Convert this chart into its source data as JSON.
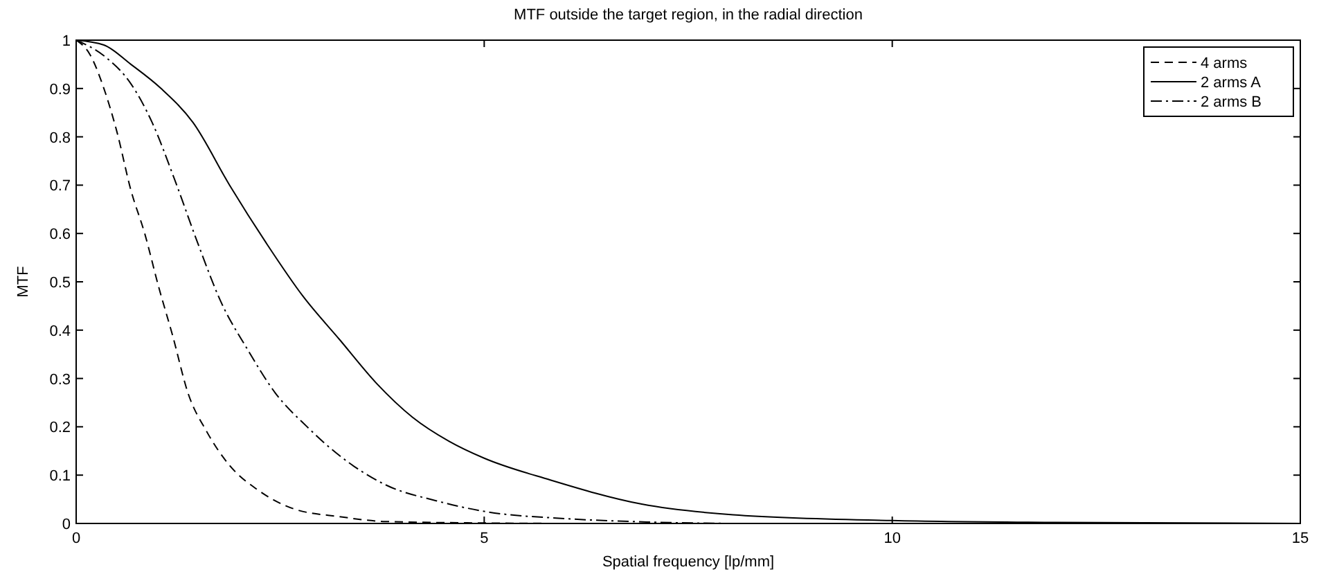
{
  "chart_data": {
    "type": "line",
    "title": "MTF outside the target region, in the radial direction",
    "xlabel": "Spatial frequency [lp/mm]",
    "ylabel": "MTF",
    "xlim": [
      0,
      15
    ],
    "ylim": [
      0,
      1
    ],
    "xticks": [
      0,
      5,
      10,
      15
    ],
    "yticks": [
      0,
      0.1,
      0.2,
      0.3,
      0.4,
      0.5,
      0.6,
      0.7,
      0.8,
      0.9,
      1
    ],
    "grid": false,
    "legend": "top right",
    "series": [
      {
        "name": "4 arms",
        "color": "#000000",
        "line_style": "dashed",
        "x": [
          0,
          0.17,
          0.34,
          0.5,
          0.67,
          0.84,
          1.01,
          1.18,
          1.37,
          1.6,
          1.88,
          2.22,
          2.67,
          3.23,
          3.79,
          5,
          6
        ],
        "values": [
          1,
          0.97,
          0.9,
          0.81,
          0.69,
          0.6,
          0.49,
          0.39,
          0.27,
          0.19,
          0.12,
          0.07,
          0.03,
          0.014,
          0.004,
          0.001,
          0
        ]
      },
      {
        "name": "2 arms A",
        "color": "#000000",
        "line_style": "solid",
        "x": [
          0,
          0.34,
          0.67,
          1.04,
          1.43,
          1.88,
          2.33,
          2.78,
          3.23,
          3.68,
          4.12,
          4.57,
          5,
          5.81,
          6.93,
          8.05,
          10,
          12,
          15
        ],
        "values": [
          1,
          0.99,
          0.95,
          0.9,
          0.83,
          0.7,
          0.58,
          0.47,
          0.38,
          0.29,
          0.22,
          0.17,
          0.135,
          0.09,
          0.04,
          0.018,
          0.006,
          0.002,
          0
        ]
      },
      {
        "name": "2 arms B",
        "color": "#000000",
        "line_style": "dashdot",
        "x": [
          0,
          0.36,
          0.67,
          0.93,
          1.21,
          1.49,
          1.77,
          2.1,
          2.44,
          2.83,
          3.23,
          3.79,
          4.41,
          5,
          6,
          7,
          8
        ],
        "values": [
          1,
          0.965,
          0.91,
          0.83,
          0.71,
          0.58,
          0.46,
          0.36,
          0.27,
          0.2,
          0.14,
          0.08,
          0.047,
          0.025,
          0.01,
          0.003,
          0
        ]
      }
    ]
  }
}
